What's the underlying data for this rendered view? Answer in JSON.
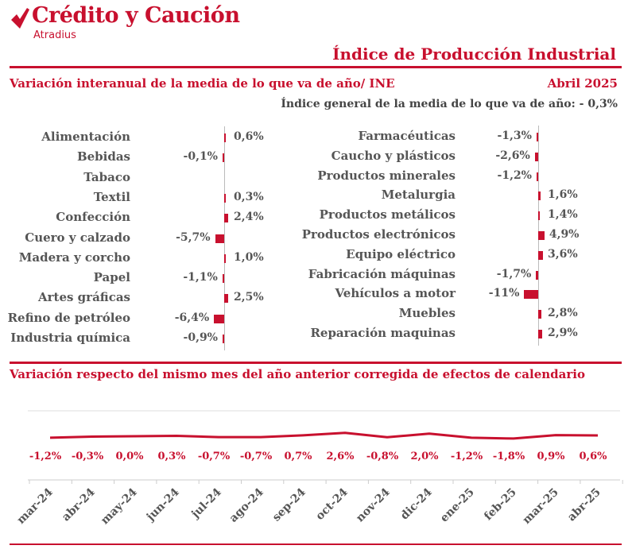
{
  "brand": {
    "name": "Crédito y Caución",
    "sub": "Atradius",
    "logo_icon": "atradius-checkmark-icon",
    "color": "#c8102e"
  },
  "page_title": "Índice de Producción Industrial",
  "section1": {
    "title": "Variación interanual de la media de lo que va de año/ INE",
    "date": "Abril 2025",
    "general": "Índice general de la media de lo que va de año: - 0,3%"
  },
  "section2": {
    "title": "Variación respecto del mismo mes del año anterior corregida de efectos de calendario"
  },
  "chart_data": [
    {
      "type": "bar",
      "orientation": "horizontal",
      "categories": [
        "Alimentación",
        "Bebidas",
        "Tabaco",
        "Textil",
        "Confección",
        "Cuero y calzado",
        "Madera y corcho",
        "Papel",
        "Artes gráficas",
        "Refino de petróleo",
        "Industria química"
      ],
      "values": [
        0.6,
        -0.1,
        null,
        0.3,
        2.4,
        -5.7,
        1.0,
        -1.1,
        2.5,
        -6.4,
        -0.9
      ],
      "labels": [
        "0,6%",
        "-0,1%",
        "",
        "0,3%",
        "2,4%",
        "-5,7%",
        "1,0%",
        "-1,1%",
        "2,5%",
        "-6,4%",
        "-0,9%"
      ]
    },
    {
      "type": "bar",
      "orientation": "horizontal",
      "categories": [
        "Farmacéuticas",
        "Caucho y plásticos",
        "Productos minerales",
        "Metalurgia",
        "Productos metálicos",
        "Productos electrónicos",
        "Equipo eléctrico",
        "Fabricación máquinas",
        "Vehículos a motor",
        "Muebles",
        "Reparación maquinas"
      ],
      "values": [
        -1.3,
        -2.6,
        -1.2,
        1.6,
        1.4,
        4.9,
        3.6,
        -1.7,
        -11,
        2.8,
        2.9
      ],
      "labels": [
        "-1,3%",
        "-2,6%",
        "-1,2%",
        "1,6%",
        "1,4%",
        "4,9%",
        "3,6%",
        "-1,7%",
        "-11%",
        "2,8%",
        "2,9%"
      ]
    },
    {
      "type": "line",
      "categories": [
        "mar-24",
        "abr-24",
        "may-24",
        "jun-24",
        "jul-24",
        "ago-24",
        "sep-24",
        "oct-24",
        "nov-24",
        "dic-24",
        "ene-25",
        "feb-25",
        "mar-25",
        "abr-25"
      ],
      "values": [
        -1.2,
        -0.3,
        0.0,
        0.3,
        -0.7,
        -0.7,
        0.7,
        2.6,
        -0.8,
        2.0,
        -1.2,
        -1.8,
        0.9,
        0.6
      ],
      "labels": [
        "-1,2%",
        "-0,3%",
        "0,0%",
        "0,3%",
        "-0,7%",
        "-0,7%",
        "0,7%",
        "2,6%",
        "-0,8%",
        "2,0%",
        "-1,2%",
        "-1,8%",
        "0,9%",
        "0,6%"
      ],
      "color": "#c8102e"
    }
  ]
}
